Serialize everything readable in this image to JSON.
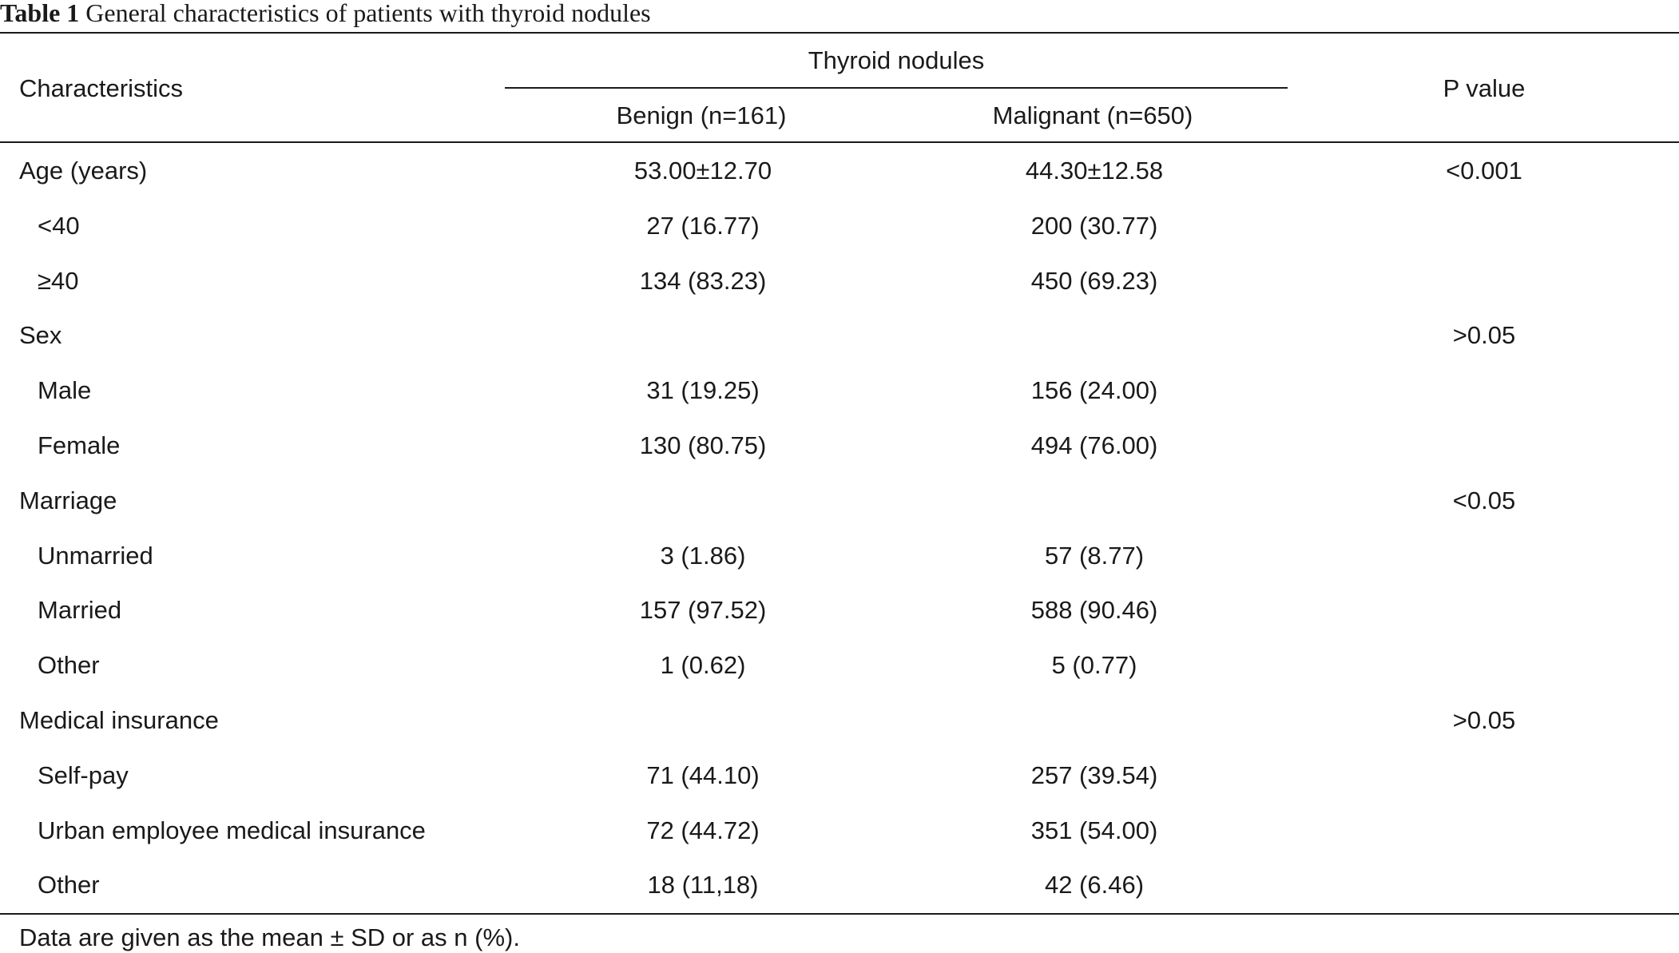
{
  "title": {
    "label": "Table 1",
    "text": "General characteristics of patients with thyroid nodules"
  },
  "header": {
    "characteristics": "Characteristics",
    "group": "Thyroid nodules",
    "benign": "Benign (n=161)",
    "malignant": "Malignant (n=650)",
    "p_value": "P value"
  },
  "rows": [
    {
      "label": "Age (years)",
      "level": 0,
      "benign": "53.00±12.70",
      "malignant": "44.30±12.58",
      "p": "<0.001"
    },
    {
      "label": "<40",
      "level": 1,
      "benign": "27 (16.77)",
      "malignant": "200 (30.77)",
      "p": ""
    },
    {
      "label": "≥40",
      "level": 1,
      "benign": "134 (83.23)",
      "malignant": "450 (69.23)",
      "p": ""
    },
    {
      "label": "Sex",
      "level": 0,
      "benign": "",
      "malignant": "",
      "p": ">0.05"
    },
    {
      "label": "Male",
      "level": 1,
      "benign": "31 (19.25)",
      "malignant": "156 (24.00)",
      "p": ""
    },
    {
      "label": "Female",
      "level": 1,
      "benign": "130 (80.75)",
      "malignant": "494 (76.00)",
      "p": ""
    },
    {
      "label": "Marriage",
      "level": 0,
      "benign": "",
      "malignant": "",
      "p": "<0.05"
    },
    {
      "label": "Unmarried",
      "level": 1,
      "benign": "3 (1.86)",
      "malignant": "57 (8.77)",
      "p": ""
    },
    {
      "label": "Married",
      "level": 1,
      "benign": "157 (97.52)",
      "malignant": "588 (90.46)",
      "p": ""
    },
    {
      "label": "Other",
      "level": 1,
      "benign": "1 (0.62)",
      "malignant": "5 (0.77)",
      "p": ""
    },
    {
      "label": "Medical insurance",
      "level": 0,
      "benign": "",
      "malignant": "",
      "p": ">0.05"
    },
    {
      "label": "Self-pay",
      "level": 1,
      "benign": "71 (44.10)",
      "malignant": "257 (39.54)",
      "p": ""
    },
    {
      "label": "Urban employee medical insurance",
      "level": 1,
      "benign": "72 (44.72)",
      "malignant": "351 (54.00)",
      "p": ""
    },
    {
      "label": "Other",
      "level": 1,
      "benign": "18 (11,18)",
      "malignant": "42 (6.46)",
      "p": ""
    }
  ],
  "footnote": "Data are given as the mean ± SD or as n (%)."
}
